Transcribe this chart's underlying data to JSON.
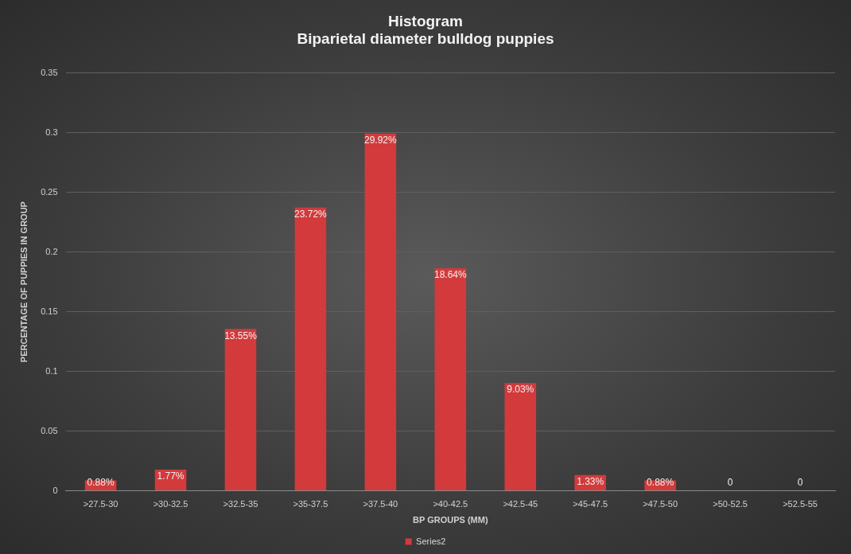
{
  "chart_data": {
    "type": "bar",
    "title": "Histogram\nBiparietal diameter bulldog puppies",
    "xlabel": "BP GROUPS (MM)",
    "ylabel": "PERCENTAGE OF PUPPIES IN GROUP",
    "categories": [
      ">27.5-30",
      ">30-32.5",
      ">32.5-35",
      ">35-37.5",
      ">37.5-40",
      ">40-42.5",
      ">42.5-45",
      ">45-47.5",
      ">47.5-50",
      ">50-52.5",
      ">52.5-55"
    ],
    "series": [
      {
        "name": "Series2",
        "color": "#d23a3c",
        "values": [
          0.0088,
          0.0177,
          0.1355,
          0.2372,
          0.2992,
          0.1864,
          0.0903,
          0.0133,
          0.0088,
          0,
          0
        ],
        "value_labels": [
          "0.88%",
          "1.77%",
          "13.55%",
          "23.72%",
          "29.92%",
          "18.64%",
          "9.03%",
          "1.33%",
          "0.88%",
          "0",
          "0"
        ]
      }
    ],
    "ylim": [
      0,
      0.35
    ],
    "yticks": [
      0,
      0.05,
      0.1,
      0.15,
      0.2,
      0.25,
      0.3,
      0.35
    ],
    "grid": "y",
    "legend": "bottom"
  }
}
